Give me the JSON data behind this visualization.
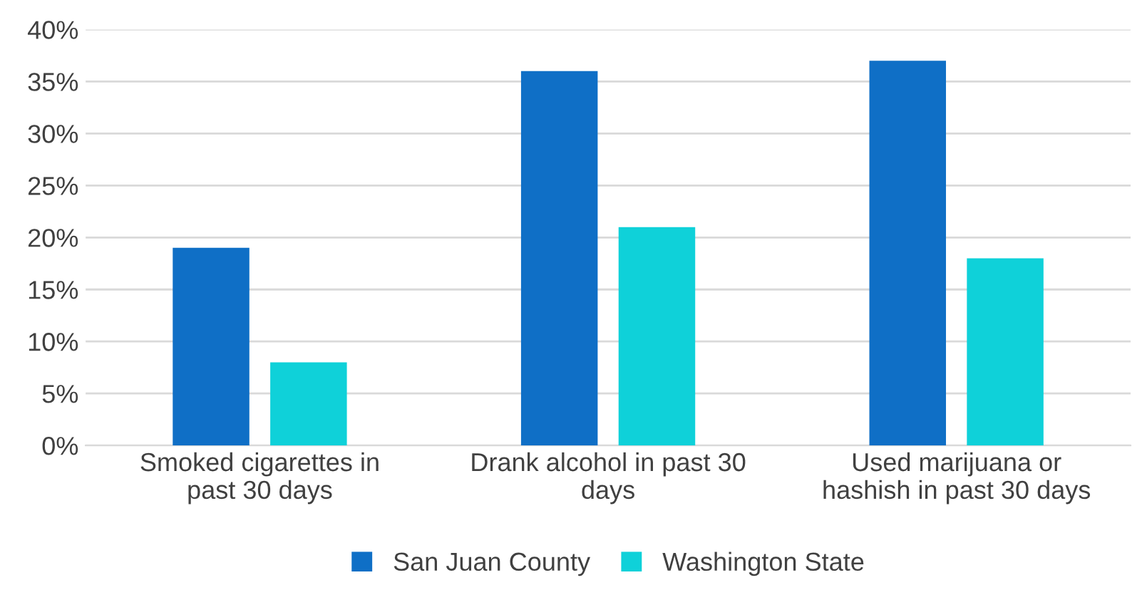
{
  "chart_data": {
    "type": "bar",
    "categories": [
      "Smoked cigarettes in\npast 30 days",
      "Drank alcohol in past 30\ndays",
      "Used marijuana or\nhashish in past 30 days"
    ],
    "series": [
      {
        "name": "San Juan County",
        "color": "#0f6fc6",
        "values": [
          19,
          36,
          37
        ]
      },
      {
        "name": "Washington State",
        "color": "#0fd1d9",
        "values": [
          8,
          21,
          18
        ]
      }
    ],
    "ylim": [
      0,
      40
    ],
    "yticks": [
      {
        "value": 0,
        "label": "0%"
      },
      {
        "value": 5,
        "label": "5%"
      },
      {
        "value": 10,
        "label": "10%"
      },
      {
        "value": 15,
        "label": "15%"
      },
      {
        "value": 20,
        "label": "20%"
      },
      {
        "value": 25,
        "label": "25%"
      },
      {
        "value": 30,
        "label": "30%"
      },
      {
        "value": 35,
        "label": "35%"
      },
      {
        "value": 40,
        "label": "40%"
      }
    ],
    "grid": "y",
    "legend": "bottom"
  }
}
